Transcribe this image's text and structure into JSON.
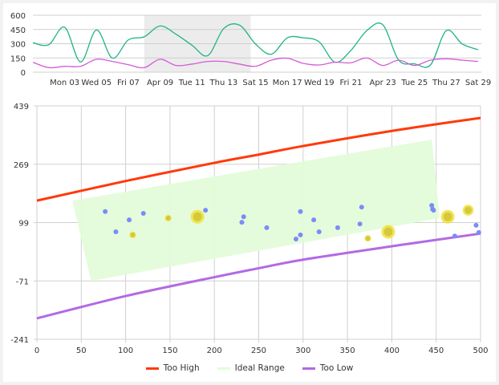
{
  "chart_data": [
    {
      "type": "line",
      "x_unit": "day of April",
      "x_tick_labels": [
        "Mon 03",
        "Wed 05",
        "Fri 07",
        "Apr 09",
        "Tue 11",
        "Thu 13",
        "Sat 15",
        "Mon 17",
        "Wed 19",
        "Fri 21",
        "Apr 23",
        "Tue 25",
        "Thu 27",
        "Sat 29"
      ],
      "x_tick_days": [
        3,
        5,
        7,
        9,
        11,
        13,
        15,
        17,
        19,
        21,
        23,
        25,
        27,
        29
      ],
      "xlim_days": [
        1,
        29.2
      ],
      "ylim": [
        0,
        600
      ],
      "y_ticks": [
        0,
        150,
        300,
        450,
        600
      ],
      "grid": "horizontal",
      "highlight_range_days": [
        8,
        14.7
      ],
      "x": [
        1,
        2,
        3,
        4,
        5,
        6,
        7,
        8,
        9,
        10,
        11,
        12,
        13,
        14,
        15,
        16,
        17,
        18,
        19,
        20,
        21,
        22,
        23,
        24,
        25,
        26,
        27,
        28,
        29
      ],
      "series": [
        {
          "color": "#1fb385",
          "values": [
            310,
            290,
            473,
            108,
            445,
            148,
            340,
            373,
            487,
            400,
            285,
            175,
            460,
            495,
            297,
            190,
            362,
            362,
            320,
            105,
            230,
            438,
            500,
            127,
            88,
            76,
            438,
            297,
            237
          ]
        },
        {
          "color": "#d45bd8",
          "values": [
            105,
            48,
            62,
            62,
            136,
            113,
            79,
            48,
            136,
            71,
            85,
            113,
            113,
            85,
            62,
            127,
            147,
            93,
            76,
            105,
            99,
            150,
            71,
            127,
            71,
            127,
            141,
            127,
            113
          ]
        }
      ]
    },
    {
      "type": "scatter",
      "xlim": [
        0,
        500
      ],
      "ylim": [
        -241,
        439
      ],
      "x_ticks": [
        0,
        50,
        100,
        150,
        200,
        250,
        300,
        350,
        400,
        450,
        500
      ],
      "y_ticks": [
        -241,
        -71,
        99,
        269,
        439
      ],
      "grid": "both",
      "legend_position": "bottom",
      "legend": [
        {
          "label": "Too High",
          "color": "#ff3a0a"
        },
        {
          "label": "Ideal Range",
          "color": "#e3fcd9"
        },
        {
          "label": "Too Low",
          "color": "#b36ae2"
        }
      ],
      "too_high_curve": [
        [
          0,
          163
        ],
        [
          100,
          220
        ],
        [
          200,
          273
        ],
        [
          250,
          297
        ],
        [
          300,
          322
        ],
        [
          400,
          366
        ],
        [
          500,
          404
        ]
      ],
      "too_low_curve": [
        [
          0,
          -180
        ],
        [
          100,
          -115
        ],
        [
          200,
          -60
        ],
        [
          250,
          -34
        ],
        [
          300,
          -9
        ],
        [
          400,
          30
        ],
        [
          500,
          67
        ]
      ],
      "ideal_range_polygon": [
        [
          40,
          163
        ],
        [
          445,
          341
        ],
        [
          454,
          112
        ],
        [
          61,
          -71
        ]
      ],
      "points_color": "#7b8cf7",
      "points": [
        [
          77,
          131
        ],
        [
          89,
          72
        ],
        [
          104,
          107
        ],
        [
          120,
          126
        ],
        [
          190,
          135
        ],
        [
          233,
          116
        ],
        [
          231,
          100
        ],
        [
          259,
          84
        ],
        [
          292,
          51
        ],
        [
          297,
          63
        ],
        [
          297,
          131
        ],
        [
          312,
          107
        ],
        [
          318,
          72
        ],
        [
          339,
          84
        ],
        [
          364,
          95
        ],
        [
          366,
          144
        ],
        [
          445,
          149
        ],
        [
          446,
          138
        ],
        [
          447,
          135
        ],
        [
          471,
          60
        ],
        [
          495,
          91
        ],
        [
          498,
          70
        ]
      ],
      "highlight_color": "#f2e13a",
      "highlight_points": [
        {
          "x": 108,
          "y": 63,
          "size": "small"
        },
        {
          "x": 148,
          "y": 112,
          "size": "small"
        },
        {
          "x": 373,
          "y": 53,
          "size": "small"
        },
        {
          "x": 181,
          "y": 116,
          "size": "large"
        },
        {
          "x": 396,
          "y": 72,
          "size": "large"
        },
        {
          "x": 463,
          "y": 116,
          "size": "large"
        },
        {
          "x": 486,
          "y": 135,
          "size": "medium"
        }
      ]
    }
  ]
}
